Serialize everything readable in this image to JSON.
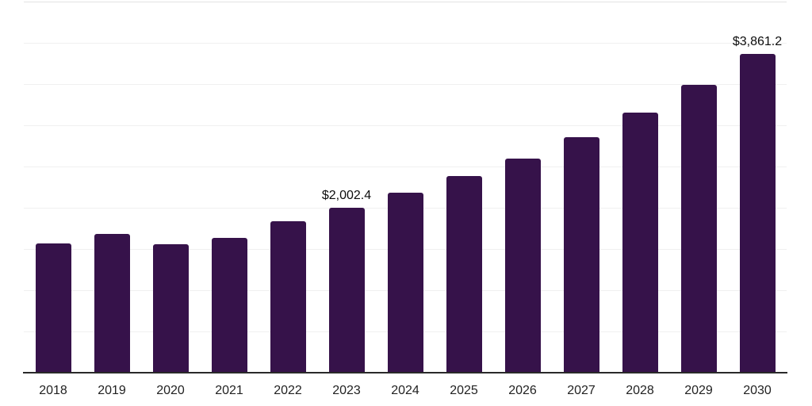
{
  "chart_data": {
    "type": "bar",
    "title": "",
    "xlabel": "",
    "ylabel": "",
    "categories": [
      "2018",
      "2019",
      "2020",
      "2021",
      "2022",
      "2023",
      "2024",
      "2025",
      "2026",
      "2027",
      "2028",
      "2029",
      "2030"
    ],
    "values": [
      1565,
      1685,
      1555,
      1635,
      1840,
      2002.4,
      2180,
      2380,
      2600,
      2860,
      3155,
      3490,
      3861.2
    ],
    "point_labels": [
      "",
      "",
      "",
      "",
      "",
      "$2,002.4",
      "",
      "",
      "",
      "",
      "",
      "",
      "$3,861.2"
    ],
    "ylim": [
      0,
      4500
    ],
    "gridline_step": 500,
    "grid": "horizontal",
    "legend": "none",
    "colors": {
      "bar": "#36124A",
      "axis_line": "#2a2a2a",
      "gridline": "#f0f0f0",
      "top_gridline": "#e3e3e3",
      "x_label_text": "#222222",
      "data_label_text": "#0d0d0d",
      "background": "#ffffff"
    }
  }
}
